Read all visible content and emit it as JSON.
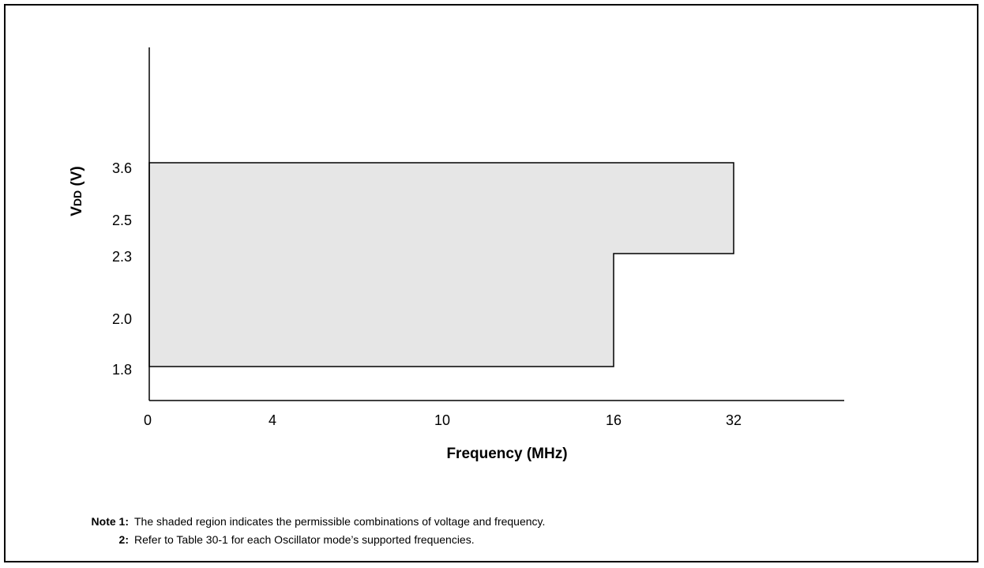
{
  "chart_data": {
    "type": "area",
    "xlabel": "Frequency (MHz)",
    "ylabel_main": "V",
    "ylabel_sub": "DD",
    "ylabel_tail": " (V)",
    "x_ticks": [
      "0",
      "4",
      "10",
      "16",
      "32"
    ],
    "y_ticks": [
      "3.6",
      "2.5",
      "2.3",
      "2.0",
      "1.8"
    ],
    "region": [
      {
        "x": "0",
        "y": "1.8"
      },
      {
        "x": "16",
        "y": "1.8"
      },
      {
        "x": "16",
        "y": "2.3"
      },
      {
        "x": "32",
        "y": "2.3"
      },
      {
        "x": "32",
        "y": "3.6"
      },
      {
        "x": "0",
        "y": "3.6"
      }
    ],
    "fill_color": "#e6e6e6",
    "stroke_color": "#000000"
  },
  "notes": [
    {
      "prefix": "Note  1:",
      "text": "The shaded region indicates the permissible combinations of voltage and frequency."
    },
    {
      "prefix": "2:",
      "text": "Refer to Table 30-1 for each Oscillator mode’s supported frequencies."
    }
  ]
}
